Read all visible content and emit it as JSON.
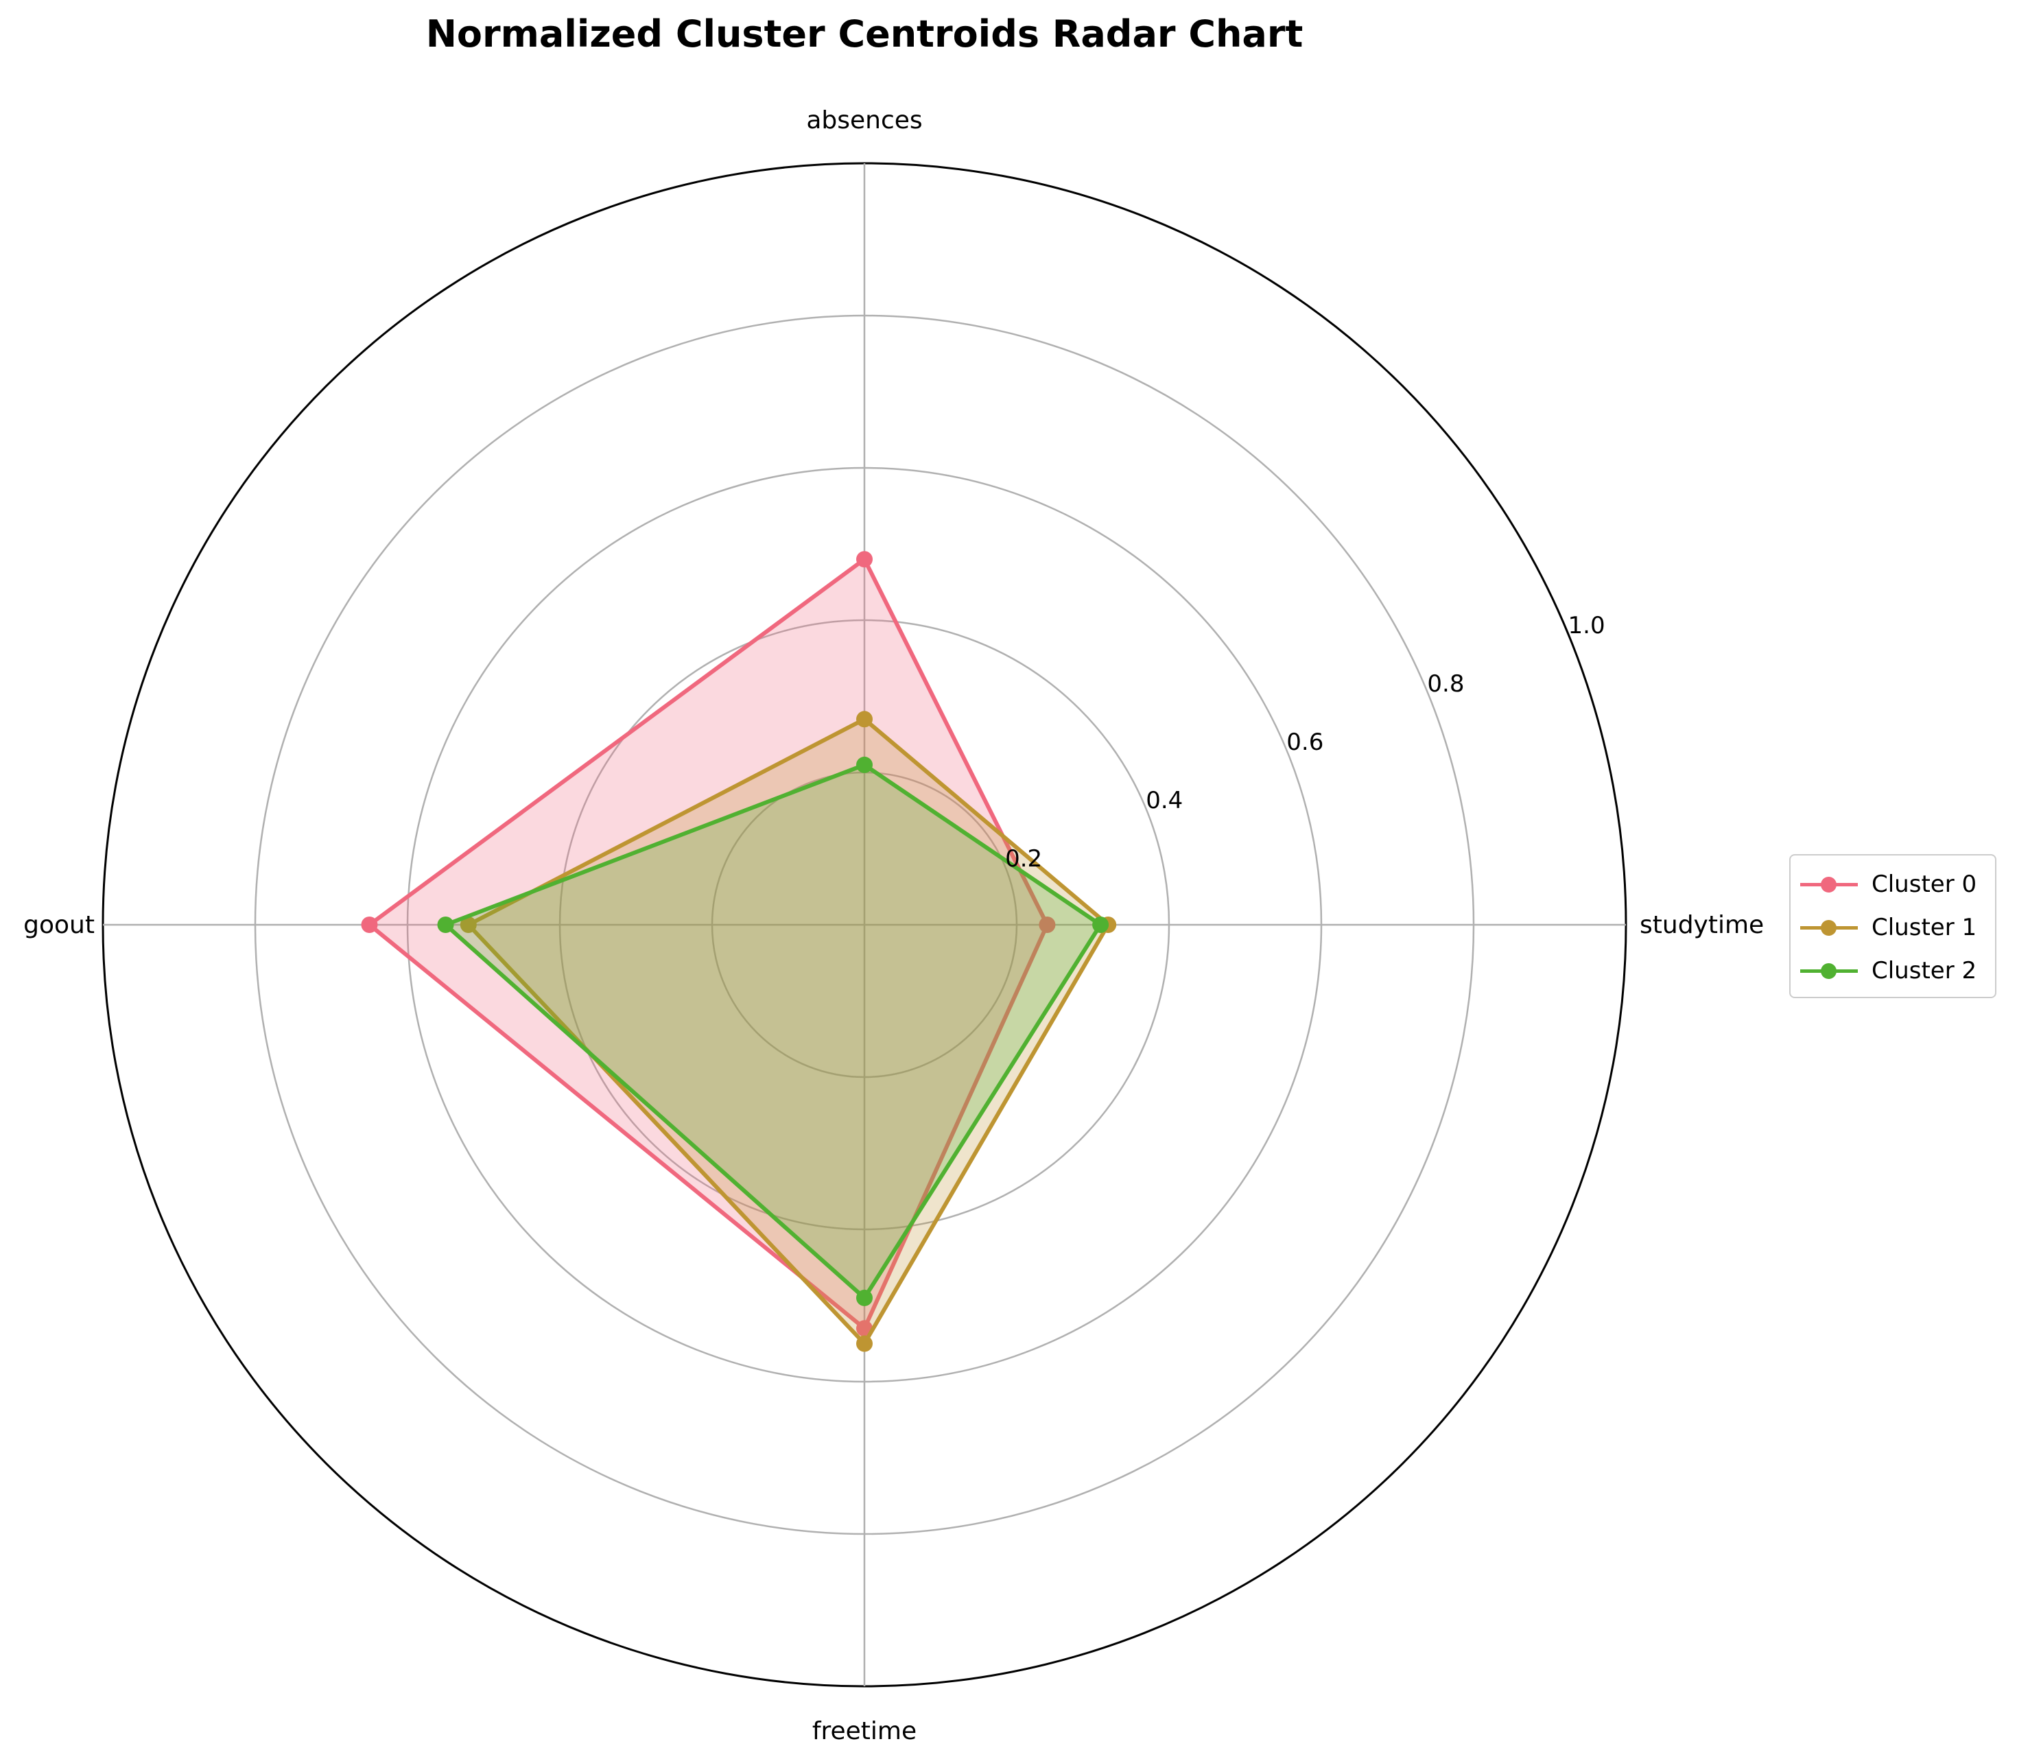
{
  "colors": {
    "grid": "#b0b0b0",
    "outer_ring": "#000000",
    "text": "#000000",
    "series": [
      "#f0687e",
      "#be9532",
      "#50b131"
    ]
  },
  "chart_data": {
    "type": "radar",
    "title": "Normalized Cluster Centroids Radar Chart",
    "categories": [
      "studytime",
      "absences",
      "goout",
      "freetime"
    ],
    "radial_ticks": [
      0.2,
      0.4,
      0.6,
      0.8,
      1.0
    ],
    "radial_tick_labels": [
      "0.2",
      "0.4",
      "0.6",
      "0.8",
      "1.0"
    ],
    "rlim": [
      0,
      1.0
    ],
    "grid": true,
    "legend_position": "right",
    "series": [
      {
        "name": "Cluster 0",
        "values": [
          0.24,
          0.48,
          0.65,
          0.53
        ]
      },
      {
        "name": "Cluster 1",
        "values": [
          0.32,
          0.27,
          0.52,
          0.55
        ]
      },
      {
        "name": "Cluster 2",
        "values": [
          0.31,
          0.21,
          0.55,
          0.49
        ]
      }
    ]
  }
}
